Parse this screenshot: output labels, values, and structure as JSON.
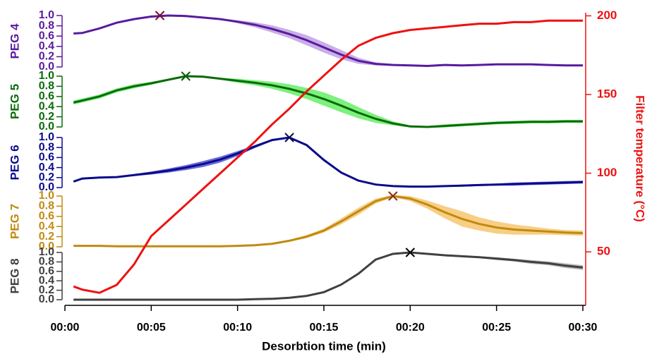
{
  "chart_data": {
    "type": "line",
    "xlabel": "Desorbtion time (min)",
    "y2label": "Filter temperature (°C)",
    "x": [
      0.5,
      1,
      2,
      3,
      4,
      5,
      6,
      7,
      8,
      9,
      10,
      11,
      12,
      13,
      14,
      15,
      16,
      17,
      18,
      19,
      20,
      21,
      22,
      23,
      24,
      25,
      26,
      27,
      28,
      29,
      30
    ],
    "xlim": [
      0,
      30
    ],
    "xticks": [
      {
        "value": 0,
        "label": "00:00"
      },
      {
        "value": 5,
        "label": "00:05"
      },
      {
        "value": 10,
        "label": "00:10"
      },
      {
        "value": 15,
        "label": "00:15"
      },
      {
        "value": 20,
        "label": "00:20"
      },
      {
        "value": 25,
        "label": "00:25"
      },
      {
        "value": 30,
        "label": "00:30"
      }
    ],
    "y2lim": [
      16,
      202
    ],
    "y2ticks": [
      50,
      100,
      150,
      200
    ],
    "series": [
      {
        "name": "PEG 4",
        "color": "#5a1a9e",
        "band_color": "#c3a6e6",
        "marker_color": "#7a1030",
        "ylim": [
          0,
          1
        ],
        "yticks": [
          {
            "value": 0,
            "label": "0.0"
          },
          {
            "value": 0.2,
            "label": "0.2"
          },
          {
            "value": 0.4,
            "label": "0.4"
          },
          {
            "value": 0.6,
            "label": "0.6"
          },
          {
            "value": 0.8,
            "label": "0.8"
          },
          {
            "value": 1,
            "label": "1.0"
          }
        ],
        "values": [
          0.65,
          0.66,
          0.75,
          0.86,
          0.93,
          0.98,
          1.0,
          0.99,
          0.96,
          0.93,
          0.88,
          0.82,
          0.74,
          0.64,
          0.52,
          0.38,
          0.24,
          0.12,
          0.06,
          0.04,
          0.03,
          0.02,
          0.04,
          0.03,
          0.04,
          0.05,
          0.05,
          0.05,
          0.04,
          0.03,
          0.03
        ],
        "errors": [
          0.01,
          0.01,
          0.01,
          0.01,
          0.01,
          0.01,
          0.01,
          0.01,
          0.01,
          0.01,
          0.03,
          0.05,
          0.07,
          0.08,
          0.1,
          0.1,
          0.09,
          0.06,
          0.03,
          0.02,
          0.01,
          0.01,
          0.01,
          0.01,
          0.01,
          0.01,
          0.01,
          0.01,
          0.01,
          0.01,
          0.01
        ],
        "peak": {
          "x": 5.5,
          "value": 1.0
        }
      },
      {
        "name": "PEG 5",
        "color": "#0a6b0a",
        "band_color": "#6ef06e",
        "marker_color": "#0a5a0a",
        "ylim": [
          0,
          1
        ],
        "yticks": [
          {
            "value": 0,
            "label": "0.0"
          },
          {
            "value": 0.2,
            "label": "0.2"
          },
          {
            "value": 0.4,
            "label": "0.4"
          },
          {
            "value": 0.6,
            "label": "0.6"
          },
          {
            "value": 0.8,
            "label": "0.8"
          },
          {
            "value": 1,
            "label": "1.0"
          }
        ],
        "values": [
          0.48,
          0.52,
          0.6,
          0.72,
          0.8,
          0.86,
          0.93,
          1.0,
          0.99,
          0.95,
          0.91,
          0.87,
          0.82,
          0.75,
          0.66,
          0.55,
          0.42,
          0.28,
          0.16,
          0.07,
          0.01,
          0.0,
          0.02,
          0.04,
          0.06,
          0.08,
          0.09,
          0.1,
          0.1,
          0.11,
          0.11
        ],
        "errors": [
          0.04,
          0.04,
          0.04,
          0.04,
          0.04,
          0.03,
          0.02,
          0.02,
          0.02,
          0.02,
          0.04,
          0.05,
          0.07,
          0.09,
          0.11,
          0.13,
          0.13,
          0.11,
          0.08,
          0.04,
          0.02,
          0.02,
          0.03,
          0.03,
          0.03,
          0.03,
          0.03,
          0.03,
          0.03,
          0.03,
          0.03
        ],
        "peak": {
          "x": 7,
          "value": 1.0
        }
      },
      {
        "name": "PEG 6",
        "color": "#0a0a8c",
        "band_color": "#5a5ad6",
        "marker_color": "#0a0a50",
        "ylim": [
          0,
          1
        ],
        "yticks": [
          {
            "value": 0,
            "label": "0.0"
          },
          {
            "value": 0.2,
            "label": "0.2"
          },
          {
            "value": 0.4,
            "label": "0.4"
          },
          {
            "value": 0.6,
            "label": "0.6"
          },
          {
            "value": 0.8,
            "label": "0.8"
          },
          {
            "value": 1,
            "label": "1.0"
          }
        ],
        "values": [
          0.12,
          0.18,
          0.2,
          0.21,
          0.25,
          0.29,
          0.34,
          0.4,
          0.47,
          0.56,
          0.68,
          0.82,
          0.95,
          1.0,
          0.85,
          0.55,
          0.3,
          0.14,
          0.06,
          0.03,
          0.02,
          0.02,
          0.03,
          0.04,
          0.05,
          0.06,
          0.07,
          0.08,
          0.09,
          0.1,
          0.11
        ],
        "errors": [
          0.01,
          0.01,
          0.01,
          0.01,
          0.02,
          0.03,
          0.04,
          0.05,
          0.06,
          0.06,
          0.05,
          0.03,
          0.02,
          0.01,
          0.01,
          0.01,
          0.01,
          0.01,
          0.01,
          0.01,
          0.01,
          0.01,
          0.01,
          0.02,
          0.02,
          0.02,
          0.03,
          0.03,
          0.03,
          0.03,
          0.03
        ],
        "peak": {
          "x": 13,
          "value": 1.0
        }
      },
      {
        "name": "PEG 7",
        "color": "#c08a10",
        "band_color": "#f7c978",
        "marker_color": "#8a2a10",
        "ylim": [
          0,
          1
        ],
        "yticks": [
          {
            "value": 0,
            "label": "0.0"
          },
          {
            "value": 0.2,
            "label": "0.2"
          },
          {
            "value": 0.4,
            "label": "0.4"
          },
          {
            "value": 0.6,
            "label": "0.6"
          },
          {
            "value": 0.8,
            "label": "0.8"
          },
          {
            "value": 1,
            "label": "1.0"
          }
        ],
        "values": [
          0.02,
          0.02,
          0.02,
          0.01,
          0.01,
          0.01,
          0.01,
          0.01,
          0.01,
          0.01,
          0.02,
          0.03,
          0.06,
          0.12,
          0.2,
          0.32,
          0.5,
          0.7,
          0.9,
          1.0,
          0.95,
          0.83,
          0.68,
          0.55,
          0.45,
          0.38,
          0.34,
          0.32,
          0.3,
          0.28,
          0.27
        ],
        "errors": [
          0.01,
          0.01,
          0.01,
          0.01,
          0.01,
          0.01,
          0.01,
          0.01,
          0.01,
          0.01,
          0.01,
          0.01,
          0.02,
          0.02,
          0.03,
          0.04,
          0.06,
          0.07,
          0.05,
          0.02,
          0.05,
          0.08,
          0.12,
          0.15,
          0.13,
          0.12,
          0.1,
          0.08,
          0.06,
          0.05,
          0.05
        ],
        "peak": {
          "x": 19,
          "value": 1.0
        }
      },
      {
        "name": "PEG 8",
        "color": "#404040",
        "band_color": "#b4b4b4",
        "marker_color": "#000000",
        "ylim": [
          0,
          1
        ],
        "yticks": [
          {
            "value": 0,
            "label": "0.0"
          },
          {
            "value": 0.2,
            "label": "0.2"
          },
          {
            "value": 0.4,
            "label": "0.4"
          },
          {
            "value": 0.6,
            "label": "0.6"
          },
          {
            "value": 0.8,
            "label": "0.8"
          },
          {
            "value": 1,
            "label": "1.0"
          }
        ],
        "values": [
          0.0,
          0.0,
          0.0,
          0.0,
          0.0,
          0.0,
          0.0,
          0.0,
          0.0,
          0.0,
          0.0,
          0.01,
          0.02,
          0.04,
          0.08,
          0.16,
          0.32,
          0.55,
          0.85,
          0.97,
          1.0,
          0.97,
          0.94,
          0.92,
          0.9,
          0.87,
          0.84,
          0.8,
          0.77,
          0.72,
          0.68
        ],
        "errors": [
          0.01,
          0.01,
          0.01,
          0.01,
          0.01,
          0.01,
          0.01,
          0.01,
          0.01,
          0.01,
          0.01,
          0.01,
          0.01,
          0.01,
          0.01,
          0.02,
          0.02,
          0.02,
          0.02,
          0.01,
          0.01,
          0.01,
          0.02,
          0.02,
          0.02,
          0.03,
          0.03,
          0.04,
          0.04,
          0.05,
          0.05
        ],
        "peak": {
          "x": 20,
          "value": 1.0
        }
      },
      {
        "axis": "y2",
        "color": "#ee1111",
        "values": [
          28,
          26,
          24,
          29,
          42,
          60,
          70,
          80,
          90,
          100,
          110,
          120,
          131,
          141,
          152,
          162,
          172,
          181,
          186,
          189,
          191,
          192,
          193,
          194,
          195,
          195,
          196,
          196,
          197,
          197,
          197
        ]
      }
    ]
  }
}
